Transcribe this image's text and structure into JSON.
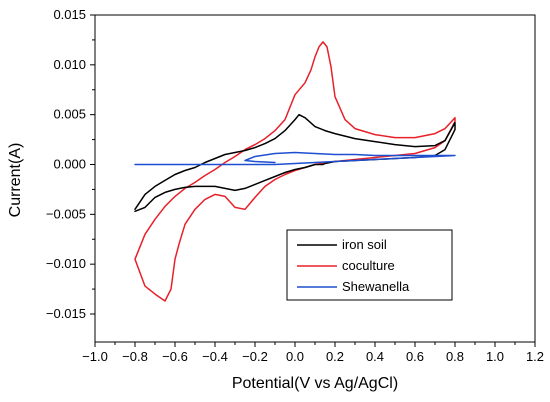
{
  "chart_data": {
    "type": "line",
    "title": "",
    "xlabel": "Potential(V vs Ag/AgCl)",
    "ylabel": "Current(A)",
    "xlim": [
      -1.0,
      1.2
    ],
    "ylim": [
      -0.018,
      0.015
    ],
    "x_ticks": [
      -1.0,
      -0.8,
      -0.6,
      -0.4,
      -0.2,
      0.0,
      0.2,
      0.4,
      0.6,
      0.8,
      1.0,
      1.2
    ],
    "x_tick_labels": [
      "−1.0",
      "−0.8",
      "−0.6",
      "−0.4",
      "−0.2",
      "0.0",
      "0.2",
      "0.4",
      "0.6",
      "0.8",
      "1.0",
      "1.2"
    ],
    "y_ticks": [
      0.015,
      0.01,
      0.005,
      0.0,
      -0.005,
      -0.01,
      -0.015
    ],
    "y_tick_labels": [
      "0.015",
      "0.010",
      "0.005",
      "0.000",
      "−0.005",
      "−0.010",
      "−0.015"
    ],
    "grid": false,
    "legend_position": "bottom-right",
    "series": [
      {
        "name": "iron soil",
        "color": "#000000",
        "x": [
          -0.8,
          -0.75,
          -0.7,
          -0.65,
          -0.6,
          -0.55,
          -0.5,
          -0.45,
          -0.4,
          -0.35,
          -0.3,
          -0.25,
          -0.2,
          -0.15,
          -0.1,
          -0.05,
          0.0,
          0.02,
          0.05,
          0.1,
          0.15,
          0.2,
          0.3,
          0.4,
          0.5,
          0.6,
          0.7,
          0.75,
          0.8,
          0.8,
          0.75,
          0.7,
          0.6,
          0.5,
          0.4,
          0.3,
          0.2,
          0.15,
          0.14,
          0.1,
          0.05,
          0.0,
          -0.05,
          -0.1,
          -0.15,
          -0.2,
          -0.25,
          -0.3,
          -0.35,
          -0.4,
          -0.45,
          -0.5,
          -0.55,
          -0.6,
          -0.65,
          -0.7,
          -0.75,
          -0.8
        ],
        "y": [
          -0.0045,
          -0.003,
          -0.0022,
          -0.0016,
          -0.001,
          -0.0006,
          -0.0003,
          0.0002,
          0.0006,
          0.001,
          0.0012,
          0.0014,
          0.0017,
          0.0021,
          0.0026,
          0.0034,
          0.0045,
          0.005,
          0.0047,
          0.0038,
          0.0034,
          0.0031,
          0.0026,
          0.0023,
          0.002,
          0.0018,
          0.0019,
          0.0024,
          0.0042,
          0.0035,
          0.0015,
          0.0009,
          0.0007,
          0.0006,
          0.0005,
          0.0004,
          0.0003,
          0.0001,
          0.0,
          0.0,
          -0.0003,
          -0.0005,
          -0.0008,
          -0.0012,
          -0.0016,
          -0.002,
          -0.0024,
          -0.0026,
          -0.0024,
          -0.0022,
          -0.0022,
          -0.0022,
          -0.0023,
          -0.0025,
          -0.0028,
          -0.0033,
          -0.0043,
          -0.0047
        ]
      },
      {
        "name": "coculture",
        "color": "#e8202a",
        "x": [
          -0.8,
          -0.78,
          -0.75,
          -0.7,
          -0.65,
          -0.6,
          -0.55,
          -0.5,
          -0.45,
          -0.4,
          -0.35,
          -0.3,
          -0.25,
          -0.2,
          -0.15,
          -0.1,
          -0.05,
          0.0,
          0.05,
          0.08,
          0.1,
          0.12,
          0.14,
          0.16,
          0.18,
          0.2,
          0.25,
          0.3,
          0.4,
          0.5,
          0.6,
          0.7,
          0.75,
          0.8,
          0.8,
          0.75,
          0.7,
          0.6,
          0.5,
          0.4,
          0.3,
          0.2,
          0.1,
          0.05,
          0.0,
          -0.05,
          -0.1,
          -0.15,
          -0.2,
          -0.25,
          -0.3,
          -0.35,
          -0.4,
          -0.45,
          -0.5,
          -0.55,
          -0.58,
          -0.6,
          -0.62,
          -0.65,
          -0.7,
          -0.75,
          -0.8
        ],
        "y": [
          -0.0095,
          -0.0085,
          -0.007,
          -0.0055,
          -0.0042,
          -0.0032,
          -0.0024,
          -0.0018,
          -0.0011,
          -0.0005,
          0.0002,
          0.0008,
          0.0015,
          0.002,
          0.0026,
          0.0034,
          0.0045,
          0.007,
          0.0082,
          0.0095,
          0.0108,
          0.0118,
          0.0123,
          0.0118,
          0.0098,
          0.0068,
          0.0045,
          0.0036,
          0.003,
          0.0027,
          0.0027,
          0.0031,
          0.0036,
          0.0047,
          0.0043,
          0.0024,
          0.0017,
          0.0011,
          0.0009,
          0.0007,
          0.0005,
          0.0003,
          0.0,
          -0.0003,
          -0.0006,
          -0.001,
          -0.0015,
          -0.0022,
          -0.0033,
          -0.0045,
          -0.0043,
          -0.0032,
          -0.003,
          -0.0035,
          -0.0045,
          -0.006,
          -0.008,
          -0.0095,
          -0.0125,
          -0.0137,
          -0.013,
          -0.0122,
          -0.0095
        ]
      },
      {
        "name": "Shewanella",
        "color": "#1f4fd1",
        "x": [
          -0.8,
          -0.7,
          -0.6,
          -0.5,
          -0.4,
          -0.3,
          -0.2,
          -0.1,
          0.0,
          0.1,
          0.2,
          0.3,
          0.4,
          0.5,
          0.6,
          0.7,
          0.8,
          0.8,
          0.7,
          0.6,
          0.5,
          0.4,
          0.3,
          0.2,
          0.1,
          0.0,
          -0.1,
          -0.2,
          -0.25,
          -0.2,
          -0.1
        ],
        "y": [
          0.0,
          0.0,
          0.0,
          0.0,
          0.0,
          0.0,
          0.0,
          0.0,
          0.0001,
          0.0002,
          0.0003,
          0.0004,
          0.0005,
          0.0006,
          0.0007,
          0.0008,
          0.0009,
          0.0009,
          0.0009,
          0.0009,
          0.0009,
          0.0009,
          0.001,
          0.001,
          0.0011,
          0.0012,
          0.0011,
          0.0008,
          0.0004,
          0.0003,
          0.0002
        ]
      }
    ]
  }
}
